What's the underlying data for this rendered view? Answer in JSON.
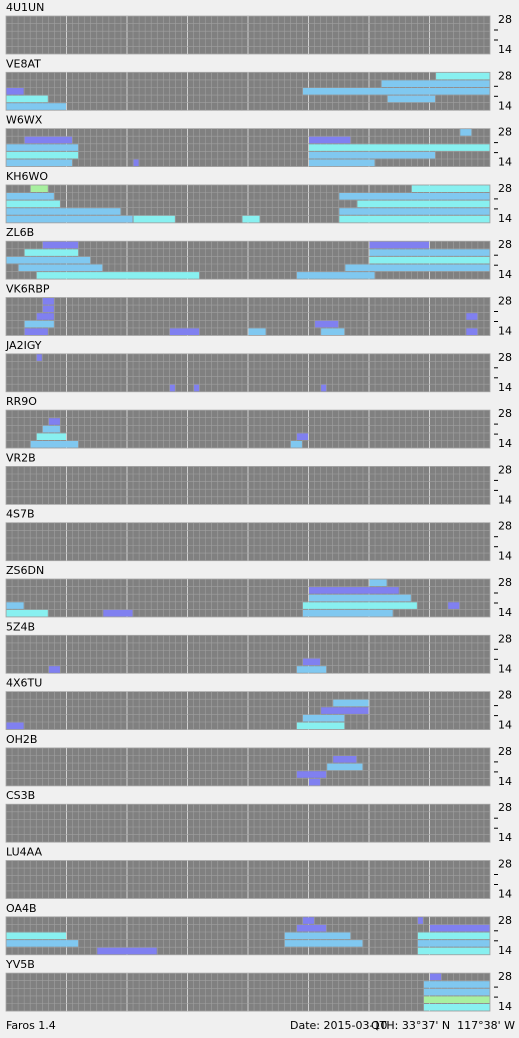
{
  "level_colors": [
    "#8080f0",
    "#80c8f0",
    "#88f0f0",
    "#a8f0a0"
  ],
  "band_ticks": [
    28,
    14
  ],
  "stations": [
    {
      "name": "4U1UN",
      "cells": []
    },
    {
      "name": "VE8AT",
      "cells": [
        [
          0,
          0,
          9,
          2
        ],
        [
          1,
          0,
          6,
          3
        ],
        [
          2,
          0,
          2,
          1
        ],
        [
          2,
          49,
          79,
          2
        ],
        [
          3,
          62,
          79,
          2
        ],
        [
          4,
          71,
          79,
          3
        ],
        [
          1,
          63,
          70,
          2
        ]
      ]
    },
    {
      "name": "W6WX",
      "cells": [
        [
          0,
          0,
          10,
          2
        ],
        [
          1,
          0,
          11,
          3
        ],
        [
          2,
          0,
          11,
          2
        ],
        [
          3,
          3,
          10,
          1
        ],
        [
          0,
          21,
          21,
          1
        ],
        [
          0,
          50,
          60,
          2
        ],
        [
          1,
          50,
          70,
          2
        ],
        [
          2,
          50,
          79,
          3
        ],
        [
          3,
          50,
          56,
          1
        ],
        [
          4,
          75,
          76,
          2
        ]
      ]
    },
    {
      "name": "KH6WO",
      "cells": [
        [
          0,
          0,
          20,
          2
        ],
        [
          0,
          21,
          27,
          3
        ],
        [
          0,
          39,
          41,
          3
        ],
        [
          1,
          0,
          18,
          2
        ],
        [
          2,
          0,
          8,
          3
        ],
        [
          3,
          0,
          7,
          2
        ],
        [
          4,
          4,
          6,
          4
        ],
        [
          0,
          55,
          79,
          3
        ],
        [
          1,
          55,
          79,
          2
        ],
        [
          2,
          58,
          79,
          3
        ],
        [
          3,
          55,
          79,
          2
        ],
        [
          4,
          67,
          79,
          3
        ]
      ]
    },
    {
      "name": "ZL6B",
      "cells": [
        [
          0,
          5,
          31,
          3
        ],
        [
          1,
          2,
          15,
          2
        ],
        [
          2,
          0,
          13,
          2
        ],
        [
          3,
          3,
          11,
          3
        ],
        [
          4,
          6,
          11,
          1
        ],
        [
          0,
          48,
          60,
          2
        ],
        [
          1,
          56,
          79,
          2
        ],
        [
          2,
          60,
          79,
          3
        ],
        [
          3,
          60,
          79,
          2
        ],
        [
          4,
          60,
          69,
          1
        ]
      ]
    },
    {
      "name": "VK6RBP",
      "cells": [
        [
          0,
          3,
          6,
          1
        ],
        [
          1,
          3,
          7,
          2
        ],
        [
          2,
          5,
          7,
          1
        ],
        [
          3,
          6,
          7,
          1
        ],
        [
          4,
          6,
          7,
          1
        ],
        [
          0,
          27,
          31,
          1
        ],
        [
          0,
          40,
          42,
          2
        ],
        [
          0,
          52,
          55,
          2
        ],
        [
          1,
          51,
          54,
          1
        ],
        [
          0,
          76,
          77,
          1
        ],
        [
          2,
          76,
          77,
          1
        ]
      ]
    },
    {
      "name": "JA2IGY",
      "cells": [
        [
          4,
          5,
          5,
          1
        ],
        [
          0,
          27,
          27,
          1
        ],
        [
          0,
          31,
          31,
          1
        ],
        [
          0,
          52,
          52,
          1
        ]
      ]
    },
    {
      "name": "RR9O",
      "cells": [
        [
          0,
          4,
          11,
          2
        ],
        [
          1,
          5,
          9,
          3
        ],
        [
          2,
          6,
          8,
          2
        ],
        [
          3,
          7,
          8,
          1
        ],
        [
          0,
          47,
          48,
          2
        ],
        [
          1,
          48,
          49,
          1
        ]
      ]
    },
    {
      "name": "VR2B",
      "cells": []
    },
    {
      "name": "4S7B",
      "cells": []
    },
    {
      "name": "ZS6DN",
      "cells": [
        [
          0,
          0,
          6,
          3
        ],
        [
          0,
          16,
          20,
          1
        ],
        [
          0,
          49,
          63,
          2
        ],
        [
          1,
          0,
          2,
          2
        ],
        [
          1,
          49,
          67,
          3
        ],
        [
          2,
          50,
          66,
          2
        ],
        [
          3,
          50,
          64,
          1
        ],
        [
          4,
          60,
          62,
          2
        ],
        [
          1,
          73,
          74,
          1
        ]
      ]
    },
    {
      "name": "5Z4B",
      "cells": [
        [
          0,
          7,
          8,
          1
        ],
        [
          0,
          48,
          52,
          2
        ],
        [
          1,
          49,
          51,
          1
        ]
      ]
    },
    {
      "name": "4X6TU",
      "cells": [
        [
          0,
          0,
          2,
          1
        ],
        [
          0,
          48,
          55,
          3
        ],
        [
          1,
          49,
          55,
          2
        ],
        [
          2,
          52,
          59,
          1
        ],
        [
          3,
          54,
          59,
          2
        ]
      ]
    },
    {
      "name": "OH2B",
      "cells": [
        [
          0,
          50,
          51,
          1
        ],
        [
          1,
          48,
          52,
          1
        ],
        [
          2,
          53,
          58,
          2
        ],
        [
          3,
          54,
          57,
          1
        ]
      ]
    },
    {
      "name": "CS3B",
      "cells": []
    },
    {
      "name": "LU4AA",
      "cells": []
    },
    {
      "name": "OA4B",
      "cells": [
        [
          0,
          15,
          24,
          1
        ],
        [
          1,
          0,
          11,
          2
        ],
        [
          1,
          46,
          58,
          2
        ],
        [
          2,
          0,
          9,
          3
        ],
        [
          2,
          46,
          56,
          2
        ],
        [
          3,
          48,
          52,
          1
        ],
        [
          4,
          49,
          50,
          1
        ],
        [
          0,
          68,
          79,
          3
        ],
        [
          1,
          68,
          79,
          2
        ],
        [
          2,
          68,
          79,
          3
        ],
        [
          3,
          70,
          79,
          1
        ],
        [
          4,
          68,
          68,
          1
        ]
      ]
    },
    {
      "name": "YV5B",
      "cells": [
        [
          0,
          69,
          79,
          3
        ],
        [
          1,
          69,
          79,
          4
        ],
        [
          2,
          69,
          79,
          2
        ],
        [
          3,
          69,
          79,
          2
        ],
        [
          4,
          70,
          71,
          1
        ]
      ]
    }
  ],
  "footer": {
    "app": "Faros 1.4",
    "date": "Date: 2015-03-10",
    "qth": "QTH: 33°37' N  117°38' W"
  }
}
